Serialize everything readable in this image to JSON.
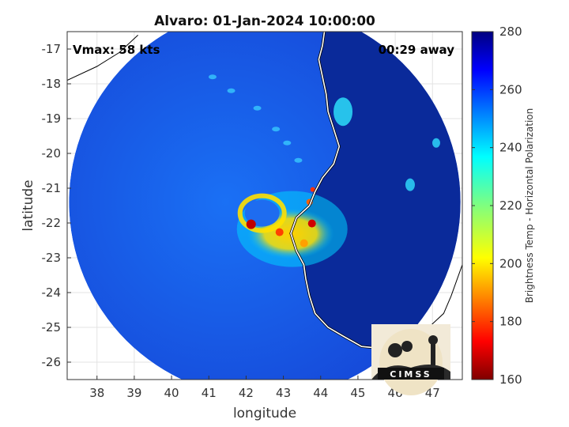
{
  "chart_data": {
    "type": "heatmap",
    "title": "Alvaro: 01-Jan-2024 10:00:00",
    "xlabel": "longitude",
    "ylabel": "latitude",
    "xlim": [
      37.2,
      47.8
    ],
    "ylim": [
      -26.5,
      -16.5
    ],
    "xticks": [
      38,
      39,
      40,
      41,
      42,
      43,
      44,
      45,
      46,
      47
    ],
    "yticks": [
      -17,
      -18,
      -19,
      -20,
      -21,
      -22,
      -23,
      -24,
      -25,
      -26
    ],
    "grid": true,
    "annotations": {
      "top_left": "Vmax: 58 kts",
      "top_right": "00:29 away"
    },
    "swath": {
      "center_lon": 42.5,
      "center_lat": -21.4,
      "radius_deg": 5.25
    },
    "storm_center": {
      "lon": 42.6,
      "lat": -21.9
    },
    "colorbar": {
      "label": "Brightness Temp - Horizontal Polarization",
      "min": 160,
      "max": 280,
      "ticks": [
        160,
        180,
        200,
        220,
        240,
        260,
        280
      ],
      "colormap": "jet"
    },
    "logo_text": "CIMSS"
  }
}
